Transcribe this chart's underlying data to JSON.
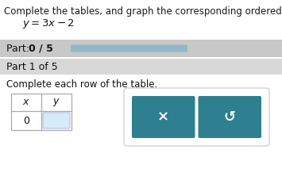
{
  "title_text": "Complete the tables, and graph the corresponding ordered pairs. Dra",
  "equation": "$y = 3x - 2$",
  "part_label_normal": "Part: ",
  "part_label_bold": "0 / 5",
  "part1_text": "Part 1 of 5",
  "instruction": "Complete each row of the table.",
  "table_x_header": "$x$",
  "table_y_header": "$y$",
  "table_x_value": "0",
  "progress_bar_color": "#8ab4c8",
  "part_bg_color": "#c8c8c8",
  "part1_bg_color": "#d8d8d8",
  "white_bg": "#ffffff",
  "button_color": "#2e7f8f",
  "button_x_label": "×",
  "button_s_label": "↺",
  "y_cell_color": "#d6eaf8",
  "title_fontsize": 8.5,
  "equation_fontsize": 9.5,
  "body_fontsize": 8.5,
  "table_fontsize": 9.0
}
